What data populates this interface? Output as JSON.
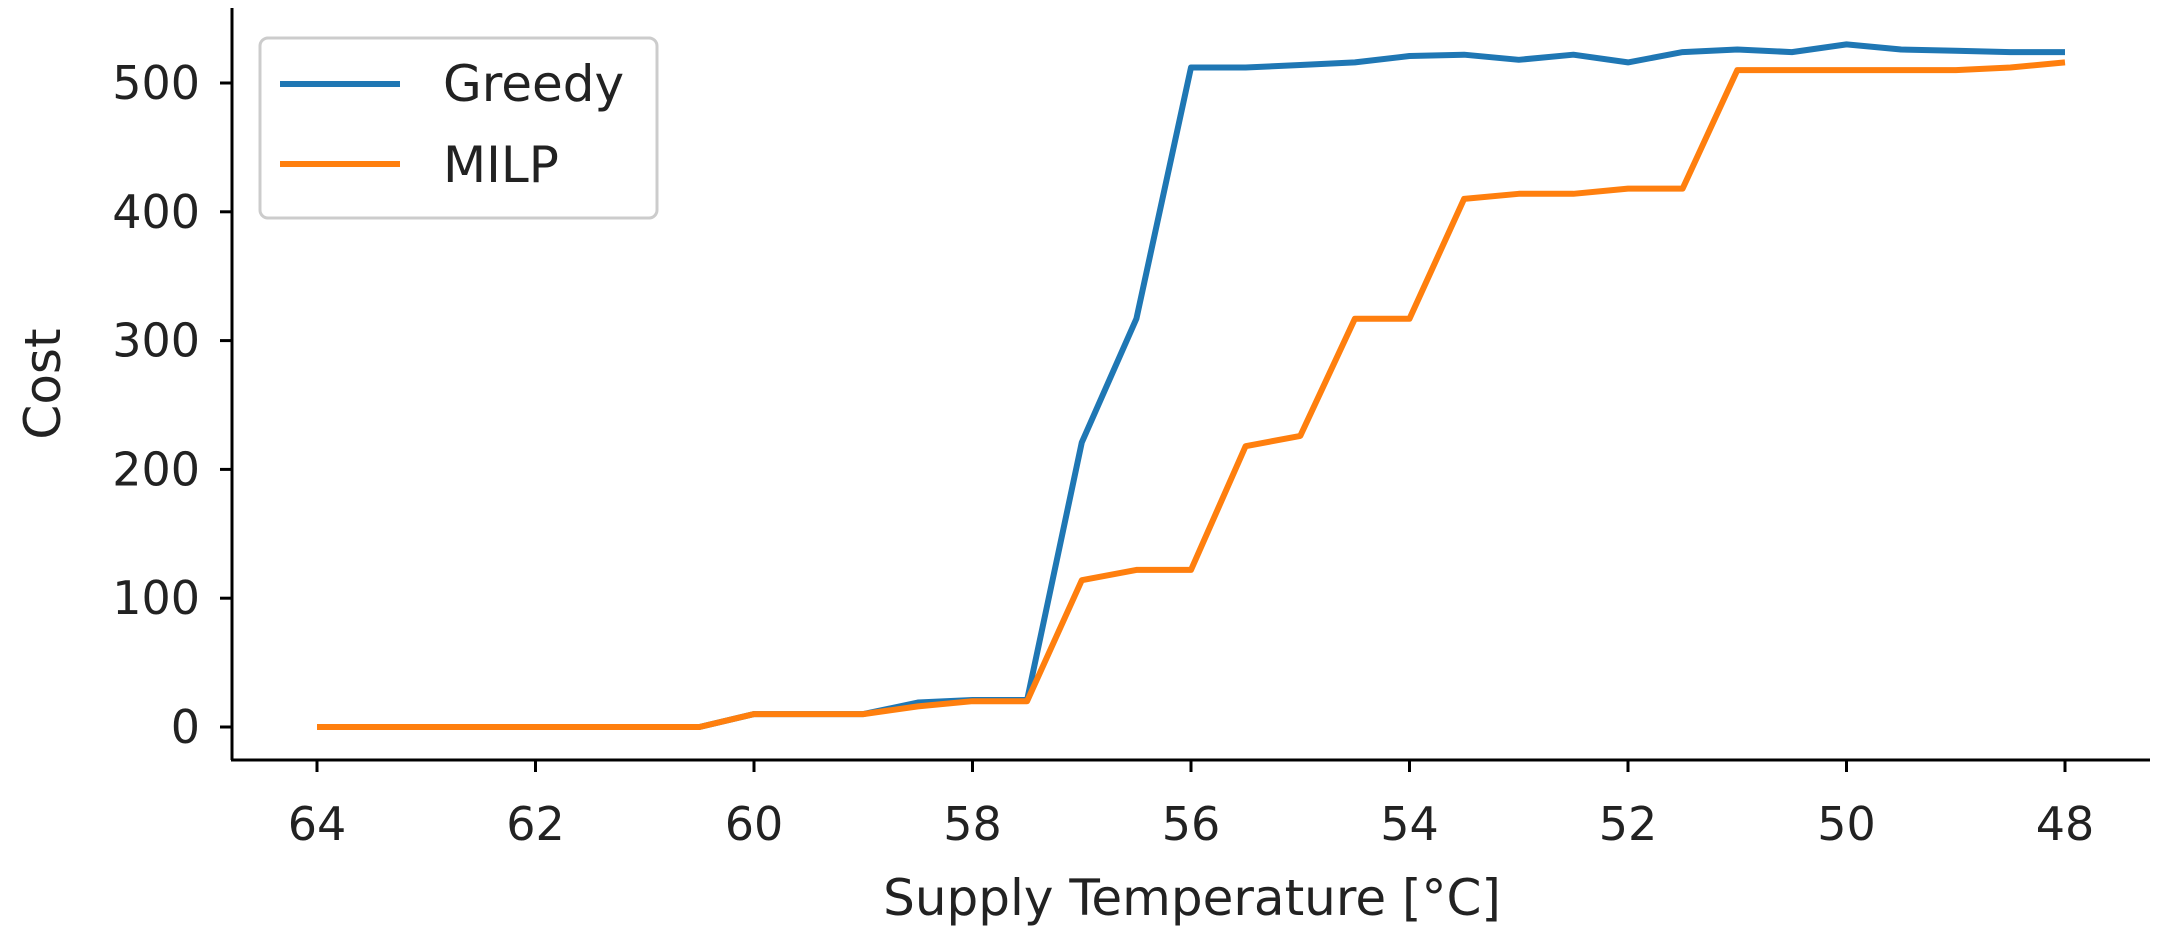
{
  "chart_data": {
    "type": "line",
    "xlabel": "Supply Temperature [°C]",
    "ylabel": "Cost",
    "xlim": [
      64.8,
      47.2
    ],
    "ylim": [
      -25,
      555
    ],
    "x_inverted": true,
    "xticks": [
      64,
      62,
      60,
      58,
      56,
      54,
      52,
      50,
      48
    ],
    "yticks": [
      0,
      100,
      200,
      300,
      400,
      500
    ],
    "grid": false,
    "legend_position": "top-left",
    "x": [
      64,
      63.5,
      63,
      62.5,
      62,
      61.5,
      61,
      60.5,
      60,
      59.5,
      59,
      58.5,
      58,
      57.5,
      57,
      56.5,
      56,
      55.5,
      55,
      54.5,
      54,
      53.5,
      53,
      52.5,
      52,
      51.5,
      51,
      50.5,
      50,
      49.5,
      49,
      48.5,
      48
    ],
    "series": [
      {
        "name": "Greedy",
        "color": "#1f77b4",
        "values": [
          0,
          0,
          0,
          0,
          0,
          0,
          0,
          0,
          10,
          10,
          10,
          19,
          21,
          21,
          221,
          317,
          512,
          512,
          514,
          516,
          521,
          522,
          518,
          522,
          516,
          524,
          526,
          524,
          530,
          526,
          525,
          524,
          524
        ]
      },
      {
        "name": "MILP",
        "color": "#ff7f0e",
        "values": [
          0,
          0,
          0,
          0,
          0,
          0,
          0,
          0,
          10,
          10,
          10,
          16,
          20,
          20,
          114,
          122,
          122,
          218,
          226,
          317,
          317,
          410,
          414,
          414,
          418,
          418,
          510,
          510,
          510,
          510,
          510,
          512,
          516
        ]
      }
    ]
  }
}
